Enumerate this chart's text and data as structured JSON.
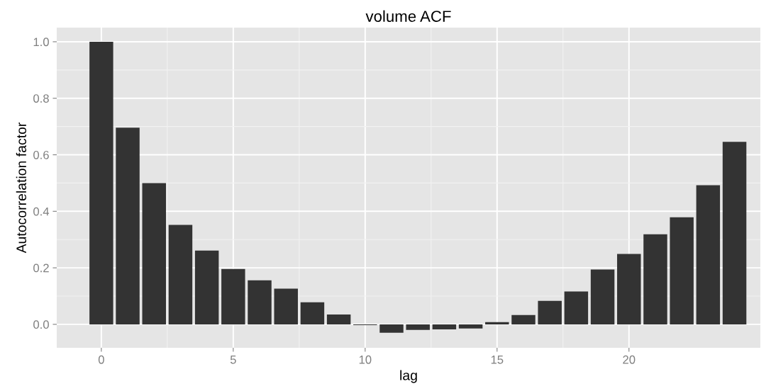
{
  "chart_data": {
    "type": "bar",
    "title": "volume ACF",
    "xlabel": "lag",
    "ylabel": "Autocorrelation factor",
    "x": [
      0,
      1,
      2,
      3,
      4,
      5,
      6,
      7,
      8,
      9,
      10,
      11,
      12,
      13,
      14,
      15,
      16,
      17,
      18,
      19,
      20,
      21,
      22,
      23,
      24
    ],
    "values": [
      1.0,
      0.696,
      0.5,
      0.352,
      0.261,
      0.196,
      0.156,
      0.126,
      0.078,
      0.035,
      -0.003,
      -0.03,
      -0.02,
      -0.018,
      -0.015,
      0.008,
      0.033,
      0.083,
      0.116,
      0.194,
      0.249,
      0.319,
      0.379,
      0.492,
      0.646
    ],
    "color": "#333333",
    "xlim": [
      -1.69,
      24.98
    ],
    "ylim": [
      -0.083,
      1.05
    ],
    "xticks": [
      0,
      5,
      10,
      15,
      20
    ],
    "yticks": [
      {
        "value": 0,
        "label": "0.0"
      },
      {
        "value": 0.2,
        "label": "0.2"
      },
      {
        "value": 0.4,
        "label": "0.4"
      },
      {
        "value": 0.6,
        "label": "0.6"
      },
      {
        "value": 0.8,
        "label": "0.8"
      },
      {
        "value": 1.0,
        "label": "1.0"
      }
    ],
    "grid": true
  }
}
